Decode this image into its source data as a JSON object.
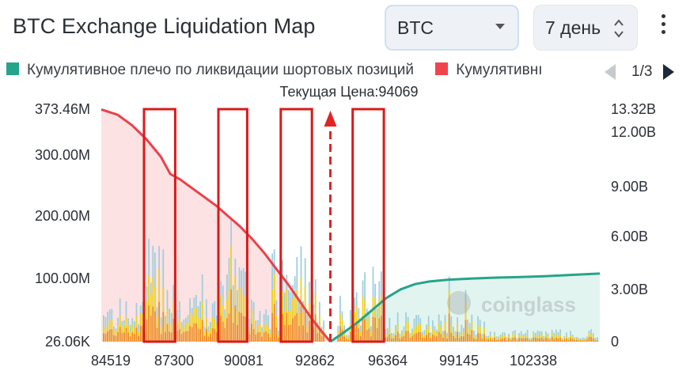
{
  "header": {
    "title": "BTC Exchange Liquidation Map",
    "coin_select": "BTC",
    "range_select": "7 день"
  },
  "legend": {
    "items": [
      {
        "label": "Кумулятивное плечо по ликвидации шортовых позиций",
        "color": "#26a48a"
      },
      {
        "label": "Кумулятивнı",
        "color": "#f0434c"
      }
    ],
    "pager": "1/3"
  },
  "current_price_label": "Текущая Цена:94069",
  "watermark": "coinglass",
  "chart_data": {
    "type": "bar",
    "current_price": 94069,
    "x_range": [
      84519,
      105300
    ],
    "x_tick_labels": [
      "84519",
      "87300",
      "90081",
      "92862",
      "96364",
      "99145",
      "102338"
    ],
    "x_tick_values": [
      84519,
      87300,
      90081,
      92862,
      96364,
      99145,
      102338
    ],
    "y_left": {
      "ticks": [
        "373.46M",
        "300.00M",
        "200.00M",
        "100.00M",
        "26.06K"
      ],
      "range": [
        26060,
        373460000
      ],
      "min_label": "26.06K",
      "max_label": "373.46M"
    },
    "y_right": {
      "ticks": [
        "13.32B",
        "12.00B",
        "9.00B",
        "6.00B",
        "3.00B",
        "0"
      ],
      "range": [
        0,
        13320000000
      ],
      "max_label": "13.32B"
    },
    "series": [
      {
        "kind": "cumulative-long",
        "color": "#e8424c",
        "fill": "#fde2e3",
        "x": [
          84519,
          85200,
          85800,
          86400,
          87000,
          87400,
          87800,
          88300,
          88800,
          89300,
          89800,
          90300,
          90800,
          91300,
          91800,
          92300,
          92800,
          93300,
          93700,
          94069
        ],
        "values": [
          13.3,
          13.0,
          12.4,
          11.6,
          10.6,
          9.6,
          9.3,
          8.8,
          8.3,
          7.8,
          7.2,
          6.6,
          5.9,
          5.1,
          4.2,
          3.3,
          2.3,
          1.3,
          0.6,
          0.0
        ]
      },
      {
        "kind": "cumulative-short",
        "color": "#26a48a",
        "fill": "#e2f4ef",
        "x": [
          94069,
          94600,
          95200,
          95800,
          96400,
          97000,
          97600,
          98200,
          99000,
          100000,
          101000,
          102000,
          103000,
          104000,
          105300
        ],
        "values": [
          0.0,
          0.5,
          1.1,
          1.8,
          2.5,
          3.0,
          3.3,
          3.45,
          3.55,
          3.62,
          3.67,
          3.7,
          3.75,
          3.82,
          3.9
        ]
      }
    ],
    "highlight_ranges": [
      [
        86300,
        87600
      ],
      [
        89400,
        90600
      ],
      [
        92000,
        93300
      ],
      [
        95000,
        96300
      ]
    ],
    "bar_colors": {
      "low": "#f28c28",
      "mid": "#f3d21e",
      "high": "#9fcfdf"
    }
  }
}
